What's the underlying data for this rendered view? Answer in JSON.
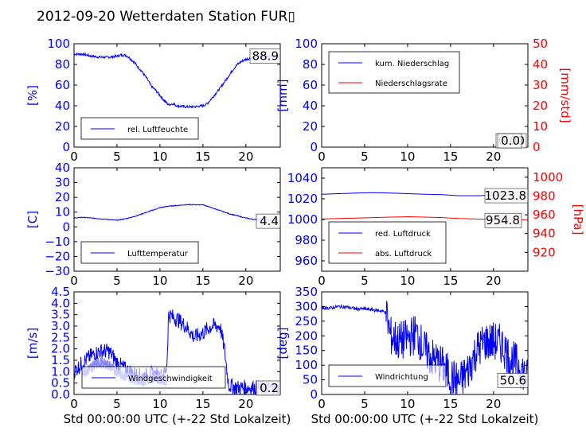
{
  "title": "2012-09-20 Wetterdaten Station FUR▯",
  "colors": {
    "left": "#0000ff",
    "right": "#ff0000",
    "light": "#8888ff"
  },
  "chart_data": [
    {
      "id": "p0",
      "type": "line",
      "xlim": [
        0,
        24
      ],
      "ylim": [
        0,
        100
      ],
      "xticks": [
        "0",
        "5",
        "10",
        "15",
        "20"
      ],
      "yticks": [
        "0",
        "20",
        "40",
        "60",
        "80",
        "100"
      ],
      "ylabel": "[%]",
      "xlabel": "",
      "annotations": [
        {
          "text": "88.9",
          "x": 24,
          "y": 88.9
        }
      ],
      "legend": {
        "position": "bottom-left",
        "entries": [
          {
            "label": "rel. Luftfeuchte",
            "color": "#0000ff"
          }
        ]
      },
      "series": [
        {
          "name": "rel. Luftfeuchte",
          "color": "#0000ff",
          "noise": 1.2,
          "x": [
            0,
            1,
            2,
            3,
            4,
            5,
            5.5,
            6,
            6.5,
            7,
            7.5,
            8,
            8.5,
            9,
            9.5,
            10,
            10.5,
            11,
            11.5,
            12,
            13,
            14,
            15,
            15.5,
            16,
            17,
            17.5,
            18,
            18.5,
            19,
            19.5,
            20,
            21,
            22,
            23,
            24
          ],
          "y": [
            90,
            90,
            88,
            87,
            87,
            88,
            89,
            89,
            86,
            82,
            77,
            72,
            66,
            59,
            55,
            50,
            45,
            41,
            42,
            40,
            39,
            39,
            40,
            42,
            47,
            57,
            63,
            69,
            75,
            80,
            83,
            85,
            87,
            88,
            88,
            89
          ]
        }
      ]
    },
    {
      "id": "p1",
      "type": "line",
      "xlim": [
        0,
        24
      ],
      "ylim": [
        0,
        100
      ],
      "y2lim": [
        0,
        50
      ],
      "xticks": [
        "0",
        "5",
        "10",
        "15",
        "20"
      ],
      "yticks": [
        "0",
        "20",
        "40",
        "60",
        "80",
        "100"
      ],
      "y2ticks": [
        "0",
        "10",
        "20",
        "30",
        "40",
        "50"
      ],
      "ylabel": "[mm]",
      "y2label": "[mm/std]",
      "xlabel": "",
      "annotations": [
        {
          "text": "0.00",
          "x": 24,
          "y": 0
        },
        {
          "text": "0.0",
          "x": 24,
          "y": 0
        }
      ],
      "legend": {
        "position": "top-left",
        "entries": [
          {
            "label": "kum. Niederschlag",
            "color": "#0000ff"
          },
          {
            "label": "Niederschlagsrate",
            "color": "#ff0000"
          }
        ]
      },
      "series": [
        {
          "name": "kum. Niederschlag",
          "color": "#0000ff",
          "axis": "left",
          "noise": 0,
          "x": [
            0,
            24
          ],
          "y": [
            0,
            0
          ]
        },
        {
          "name": "Niederschlagsrate",
          "color": "#ff0000",
          "axis": "right",
          "noise": 0,
          "x": [
            0,
            24
          ],
          "y": [
            0,
            0
          ]
        }
      ]
    },
    {
      "id": "p2",
      "type": "line",
      "xlim": [
        0,
        24
      ],
      "ylim": [
        -30,
        40
      ],
      "xticks": [
        "0",
        "5",
        "10",
        "15",
        "20"
      ],
      "yticks": [
        "−30",
        "−20",
        "−10",
        "0",
        "10",
        "20",
        "30",
        "40"
      ],
      "ylabel": "[C]",
      "xlabel": "",
      "annotations": [
        {
          "text": "4.4",
          "x": 24,
          "y": 4.4
        }
      ],
      "legend": {
        "position": "bottom-left",
        "entries": [
          {
            "label": "Lufttemperatur",
            "color": "#0000ff"
          }
        ]
      },
      "series": [
        {
          "name": "Lufttemperatur",
          "color": "#0000ff",
          "noise": 0.25,
          "x": [
            0,
            1,
            2,
            3,
            4,
            5,
            6,
            7,
            8,
            9,
            10,
            11,
            12,
            13,
            14,
            15,
            16,
            17,
            18,
            19,
            20,
            21,
            22,
            23,
            24
          ],
          "y": [
            6,
            6.5,
            6,
            5.5,
            5,
            4.5,
            5.5,
            7,
            9,
            11,
            13,
            14,
            14.5,
            15,
            15,
            15,
            13,
            11,
            9,
            7.5,
            6,
            5,
            5,
            4.5,
            4.4
          ]
        }
      ]
    },
    {
      "id": "p3",
      "type": "line",
      "xlim": [
        0,
        24
      ],
      "ylim": [
        950,
        1050
      ],
      "y2lim": [
        900,
        1010
      ],
      "xticks": [
        "0",
        "5",
        "10",
        "15",
        "20"
      ],
      "yticks": [
        "960",
        "980",
        "1000",
        "1020",
        "1040"
      ],
      "y2ticks": [
        "920",
        "940",
        "960",
        "980",
        "1000"
      ],
      "ylabel": "",
      "y2label": "[hPa]",
      "xlabel": "",
      "annotations": [
        {
          "text": "1023.8",
          "x": 24,
          "y": 1023.8,
          "axis": "left"
        },
        {
          "text": "954.8",
          "x": 24,
          "y": 954.8,
          "axis": "right"
        }
      ],
      "legend": {
        "position": "bottom-left",
        "entries": [
          {
            "label": "red. Luftdruck",
            "color": "#0000ff"
          },
          {
            "label": "abs. Luftdruck",
            "color": "#ff0000"
          }
        ]
      },
      "series": [
        {
          "name": "red. Luftdruck",
          "color": "#0000ff",
          "axis": "left",
          "noise": 0,
          "x": [
            0,
            2,
            4,
            6,
            8,
            10,
            12,
            14,
            16,
            18,
            20,
            22,
            24
          ],
          "y": [
            1024.5,
            1025,
            1025.5,
            1026,
            1025.5,
            1025,
            1024.5,
            1024,
            1023,
            1023,
            1023.5,
            1023.8,
            1023.8
          ]
        },
        {
          "name": "abs. Luftdruck",
          "color": "#ff0000",
          "axis": "right",
          "noise": 0,
          "x": [
            0,
            2,
            4,
            6,
            8,
            10,
            12,
            14,
            16,
            18,
            20,
            22,
            24
          ],
          "y": [
            955.5,
            956,
            956.5,
            957,
            957.5,
            958,
            957.5,
            957,
            956,
            955.5,
            955,
            954.8,
            954.8
          ]
        }
      ]
    },
    {
      "id": "p4",
      "type": "line",
      "xlim": [
        0,
        24
      ],
      "ylim": [
        0,
        4.5
      ],
      "xticks": [
        "0",
        "5",
        "10",
        "15",
        "20"
      ],
      "yticks": [
        "0.0",
        "0.5",
        "1.0",
        "1.5",
        "2.0",
        "2.5",
        "3.0",
        "3.5",
        "4.0",
        "4.5"
      ],
      "ylabel": "[m/s]",
      "xlabel": "Std 00:00:00 UTC (+-22 Std Lokalzeit)",
      "annotations": [
        {
          "text": "0.2",
          "x": 24,
          "y": 0.2
        }
      ],
      "legend": {
        "position": "bottom-center",
        "entries": [
          {
            "label": "Windgeschwindigkeit",
            "color": "#0000ff"
          }
        ]
      },
      "series": [
        {
          "name": "Windgeschwindigkeit",
          "color": "#0000ff",
          "noise": 0.35,
          "x": [
            0,
            0.5,
            1,
            2,
            3,
            4,
            4.5,
            5,
            6,
            7,
            8,
            9,
            10,
            10.5,
            10.8,
            11,
            12,
            13,
            14,
            15,
            16,
            17,
            17.5,
            18,
            19,
            20,
            21,
            22,
            23,
            24
          ],
          "y": [
            1.0,
            1.2,
            1.4,
            1.7,
            1.9,
            1.9,
            1.7,
            1.4,
            1.1,
            0.9,
            0.8,
            0.9,
            0.8,
            0.9,
            1.2,
            3.5,
            3.3,
            3.0,
            2.5,
            2.7,
            3.0,
            3.0,
            2.0,
            0.4,
            0.3,
            0.3,
            0.3,
            0.25,
            0.3,
            0.2
          ]
        },
        {
          "name": "Windgeschwindigkeit",
          "color": "#8888ff",
          "noise": 0.25,
          "x": [
            1,
            2,
            3,
            4,
            5,
            6,
            7,
            8,
            9,
            10,
            10.8
          ],
          "y": [
            0.9,
            1.2,
            1.4,
            1.3,
            1.0,
            0.8,
            0.7,
            0.6,
            0.7,
            0.7,
            0.6
          ]
        }
      ]
    },
    {
      "id": "p5",
      "type": "line",
      "xlim": [
        0,
        24
      ],
      "ylim": [
        0,
        350
      ],
      "xticks": [
        "0",
        "5",
        "10",
        "15",
        "20"
      ],
      "yticks": [
        "0",
        "50",
        "100",
        "150",
        "200",
        "250",
        "300",
        "350"
      ],
      "ylabel": "[deg]",
      "xlabel": "Std 00:00:00 UTC (+-22 Std Lokalzeit)",
      "annotations": [
        {
          "text": "50.6",
          "x": 24,
          "y": 50.6
        }
      ],
      "legend": {
        "position": "bottom-left",
        "entries": [
          {
            "label": "Windrichtung",
            "color": "#0000ff"
          }
        ]
      },
      "series": [
        {
          "name": "Windrichtung",
          "color": "#0000ff",
          "noise": 70,
          "noise_from": 7.5,
          "x": [
            0,
            1,
            2,
            3,
            4,
            5,
            6,
            7,
            7.5,
            8,
            9,
            10,
            11,
            12,
            13,
            14,
            15,
            16,
            17,
            18,
            19,
            20,
            21,
            22,
            23,
            24
          ],
          "y": [
            295,
            295,
            300,
            298,
            292,
            292,
            288,
            285,
            280,
            200,
            180,
            190,
            210,
            150,
            120,
            100,
            60,
            40,
            80,
            150,
            180,
            180,
            170,
            120,
            100,
            50
          ]
        }
      ]
    }
  ]
}
